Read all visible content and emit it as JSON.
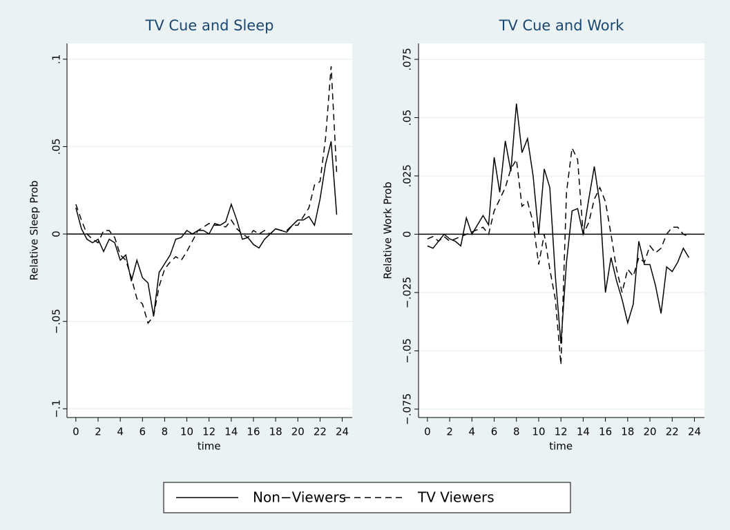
{
  "chart_data": [
    {
      "type": "line",
      "title": "TV Cue and Sleep",
      "x_label": "time",
      "y_label": "Relative Sleep Prob",
      "x": [
        0,
        0.5,
        1,
        1.5,
        2,
        2.5,
        3,
        3.5,
        4,
        4.5,
        5,
        5.5,
        6,
        6.5,
        7,
        7.5,
        8,
        8.5,
        9,
        9.5,
        10,
        10.5,
        11,
        11.5,
        12,
        12.5,
        13,
        13.5,
        14,
        14.5,
        15,
        15.5,
        16,
        16.5,
        17,
        17.5,
        18,
        18.5,
        19,
        19.5,
        20,
        20.5,
        21,
        21.5,
        22,
        22.5,
        23,
        23.5
      ],
      "series": [
        {
          "name": "Non−Viewers",
          "color": "#000000",
          "style": "solid",
          "values": [
            0.015,
            0.003,
            -0.003,
            -0.005,
            -0.003,
            -0.01,
            -0.003,
            -0.005,
            -0.015,
            -0.012,
            -0.027,
            -0.015,
            -0.025,
            -0.028,
            -0.047,
            -0.022,
            -0.017,
            -0.012,
            -0.003,
            -0.002,
            0.002,
            0.0,
            0.002,
            0.002,
            0.0,
            0.006,
            0.005,
            0.007,
            0.017,
            0.008,
            -0.003,
            -0.002,
            -0.006,
            -0.008,
            -0.003,
            0.0,
            0.003,
            0.002,
            0.001,
            0.005,
            0.008,
            0.008,
            0.01,
            0.005,
            0.02,
            0.04,
            0.053,
            0.011
          ]
        },
        {
          "name": "TV Viewers",
          "color": "#000000",
          "style": "dashed",
          "values": [
            0.017,
            0.008,
            0.0,
            -0.003,
            -0.005,
            0.002,
            0.002,
            -0.002,
            -0.012,
            -0.015,
            -0.025,
            -0.037,
            -0.04,
            -0.051,
            -0.047,
            -0.03,
            -0.02,
            -0.016,
            -0.013,
            -0.015,
            -0.01,
            -0.004,
            0.002,
            0.004,
            0.006,
            0.005,
            0.005,
            0.004,
            0.008,
            0.003,
            0.0,
            -0.002,
            0.002,
            0.0,
            0.002,
            0.0,
            0.003,
            0.002,
            0.002,
            0.005,
            0.005,
            0.01,
            0.015,
            0.028,
            0.03,
            0.055,
            0.096,
            0.035
          ]
        }
      ],
      "xlim": [
        -0.8,
        24.9
      ],
      "xticks": [
        0,
        2,
        4,
        6,
        8,
        10,
        12,
        14,
        16,
        18,
        20,
        22,
        24
      ],
      "ylim": [
        -0.105,
        0.109
      ],
      "yticks": [
        {
          "value": -0.1,
          "label": "−.1"
        },
        {
          "value": -0.05,
          "label": "−.05"
        },
        0,
        {
          "value": 0.05,
          "label": ".05"
        },
        {
          "value": 0.1,
          "label": ".1"
        }
      ],
      "reference_line": 0,
      "grid": true,
      "legend": "bottom"
    },
    {
      "type": "line",
      "title": "TV Cue and Work",
      "x_label": "time",
      "y_label": "Relative Work Prob",
      "x": [
        0,
        0.5,
        1,
        1.5,
        2,
        2.5,
        3,
        3.5,
        4,
        4.5,
        5,
        5.5,
        6,
        6.5,
        7,
        7.5,
        8,
        8.5,
        9,
        9.5,
        10,
        10.5,
        11,
        11.5,
        12,
        12.5,
        13,
        13.5,
        14,
        14.5,
        15,
        15.5,
        16,
        16.5,
        17,
        17.5,
        18,
        18.5,
        19,
        19.5,
        20,
        20.5,
        21,
        21.5,
        22,
        22.5,
        23,
        23.5
      ],
      "series": [
        {
          "color": "#000000",
          "style": "solid",
          "values": [
            -0.005,
            -0.006,
            -0.003,
            0.0,
            -0.002,
            -0.003,
            -0.005,
            0.007,
            0.0,
            0.004,
            0.008,
            0.004,
            0.033,
            0.018,
            0.04,
            0.027,
            0.056,
            0.035,
            0.041,
            0.025,
            0.0,
            0.028,
            0.02,
            -0.018,
            -0.047,
            -0.012,
            0.01,
            0.011,
            0.0,
            0.015,
            0.029,
            0.013,
            -0.025,
            -0.01,
            -0.02,
            -0.028,
            -0.038,
            -0.03,
            -0.003,
            -0.013,
            -0.013,
            -0.022,
            -0.034,
            -0.014,
            -0.016,
            -0.012,
            -0.006,
            -0.01
          ]
        },
        {
          "color": "#000000",
          "style": "dashed",
          "values": [
            -0.002,
            -0.001,
            -0.003,
            -0.001,
            -0.003,
            -0.002,
            -0.001,
            0.0,
            0.001,
            0.002,
            0.003,
            0.0,
            0.01,
            0.015,
            0.02,
            0.028,
            0.032,
            0.012,
            0.014,
            0.005,
            -0.013,
            0.0,
            -0.015,
            -0.028,
            -0.056,
            0.018,
            0.037,
            0.032,
            0.0,
            0.005,
            0.015,
            0.02,
            0.014,
            0.0,
            -0.015,
            -0.025,
            -0.015,
            -0.018,
            -0.01,
            -0.012,
            -0.005,
            -0.008,
            -0.006,
            0.0,
            0.003,
            0.003,
            0.0,
            -0.001
          ]
        }
      ],
      "xlim": [
        -0.8,
        24.9
      ],
      "xticks": [
        0,
        2,
        4,
        6,
        8,
        10,
        12,
        14,
        16,
        18,
        20,
        22,
        24
      ],
      "ylim": [
        -0.0786,
        0.0818
      ],
      "yticks": [
        {
          "value": -0.075,
          "label": "−.075"
        },
        {
          "value": -0.05,
          "label": "−.05"
        },
        {
          "value": -0.025,
          "label": "−.025"
        },
        0,
        {
          "value": 0.025,
          "label": ".025"
        },
        {
          "value": 0.05,
          "label": ".05"
        },
        {
          "value": 0.075,
          "label": ".075"
        }
      ],
      "reference_line": 0,
      "grid": true
    }
  ]
}
